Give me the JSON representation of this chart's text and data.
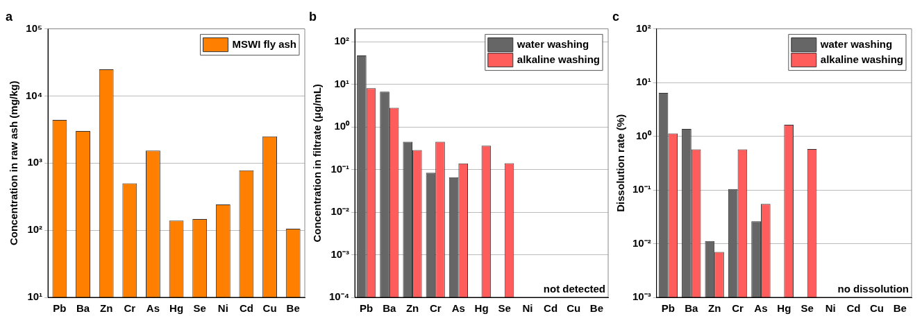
{
  "chart_data": [
    {
      "type": "bar",
      "title": "a",
      "ylabel": "Concentration in raw ash (mg/kg)",
      "categories": [
        "Pb",
        "Ba",
        "Zn",
        "Cr",
        "As",
        "Hg",
        "Se",
        "Ni",
        "Cd",
        "Cu",
        "Be"
      ],
      "series": [
        {
          "name": "MSWI fly ash",
          "color": "#ff8000",
          "values": [
            4400,
            3000,
            25000,
            500,
            1540,
            139,
            147,
            242,
            780,
            2500,
            105
          ]
        }
      ],
      "ylim": [
        10,
        100000
      ],
      "yticks": [
        {
          "value": 10,
          "label": "10¹"
        },
        {
          "value": 100,
          "label": "10²"
        },
        {
          "value": 1000,
          "label": "10³"
        },
        {
          "value": 10000,
          "label": "10⁴"
        },
        {
          "value": 100000,
          "label": "10⁵"
        }
      ],
      "log": true,
      "grid": "y",
      "legend": "top right"
    },
    {
      "type": "bar",
      "title": "b",
      "ylabel": "Concentration in filtrate (μg/mL)",
      "categories": [
        "Pb",
        "Ba",
        "Zn",
        "Cr",
        "As",
        "Hg",
        "Se",
        "Ni",
        "Cd",
        "Cu",
        "Be"
      ],
      "series": [
        {
          "name": "water washing",
          "color": "#666666",
          "values": [
            47.5,
            6.7,
            0.45,
            0.084,
            0.066,
            null,
            null,
            null,
            null,
            null,
            null
          ]
        },
        {
          "name": "alkaline washing",
          "color": "#ff5c5c",
          "values": [
            8.1,
            2.8,
            0.285,
            0.45,
            0.139,
            0.36,
            0.14,
            null,
            null,
            null,
            null
          ]
        }
      ],
      "ylim": [
        0.0001,
        200
      ],
      "yticks": [
        {
          "value": 0.0001,
          "label": "10⁻⁴"
        },
        {
          "value": 0.001,
          "label": "10⁻³"
        },
        {
          "value": 0.01,
          "label": "10⁻²"
        },
        {
          "value": 0.1,
          "label": "10⁻¹"
        },
        {
          "value": 1,
          "label": "10⁰"
        },
        {
          "value": 10,
          "label": "10¹"
        },
        {
          "value": 100,
          "label": "10²"
        }
      ],
      "log": true,
      "grid": "y",
      "legend": "top right",
      "annotations": [
        "not detected"
      ]
    },
    {
      "type": "bar",
      "title": "c",
      "ylabel": "Dissolution rate (%)",
      "categories": [
        "Pb",
        "Ba",
        "Zn",
        "Cr",
        "As",
        "Hg",
        "Se",
        "Ni",
        "Cd",
        "Cu",
        "Be"
      ],
      "series": [
        {
          "name": "water washing",
          "color": "#666666",
          "values": [
            6.4,
            1.37,
            0.0112,
            0.104,
            0.026,
            null,
            null,
            null,
            null,
            null,
            null
          ]
        },
        {
          "name": "alkaline washing",
          "color": "#ff5c5c",
          "values": [
            1.13,
            0.57,
            0.007,
            0.57,
            0.055,
            1.63,
            0.58,
            null,
            null,
            null,
            null
          ]
        }
      ],
      "ylim": [
        0.001,
        100
      ],
      "yticks": [
        {
          "value": 0.001,
          "label": "10⁻³"
        },
        {
          "value": 0.01,
          "label": "10⁻²"
        },
        {
          "value": 0.1,
          "label": "10⁻¹"
        },
        {
          "value": 1,
          "label": "10⁰"
        },
        {
          "value": 10,
          "label": "10¹"
        },
        {
          "value": 100,
          "label": "10²"
        }
      ],
      "log": true,
      "grid": "y",
      "legend": "top right",
      "annotations": [
        "no dissolution"
      ]
    }
  ]
}
